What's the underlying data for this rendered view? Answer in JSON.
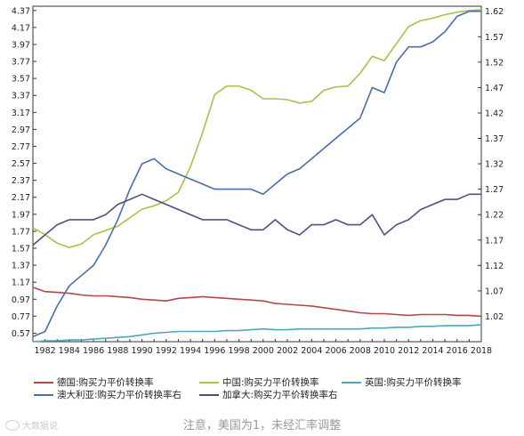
{
  "chart_data": {
    "type": "line",
    "title": "",
    "x": [
      1981,
      1982,
      1983,
      1984,
      1985,
      1986,
      1987,
      1988,
      1989,
      1990,
      1991,
      1992,
      1993,
      1994,
      1995,
      1996,
      1997,
      1998,
      1999,
      2000,
      2001,
      2002,
      2003,
      2004,
      2005,
      2006,
      2007,
      2008,
      2009,
      2010,
      2011,
      2012,
      2013,
      2014,
      2015,
      2016,
      2017,
      2018
    ],
    "x_tick_labels": [
      "1982",
      "1984",
      "1986",
      "1988",
      "1990",
      "1992",
      "1994",
      "1996",
      "1998",
      "2000",
      "2002",
      "2004",
      "2006",
      "2008",
      "2010",
      "2012",
      "2014",
      "2016",
      "2018"
    ],
    "x_range": [
      1981,
      2018
    ],
    "left_axis": {
      "ticks": [
        "4.37",
        "4.17",
        "3.97",
        "3.77",
        "3.57",
        "3.37",
        "3.17",
        "2.97",
        "2.77",
        "2.57",
        "2.37",
        "2.17",
        "1.97",
        "1.77",
        "1.57",
        "1.37",
        "1.17",
        "0.97",
        "0.77",
        "0.57"
      ],
      "range": [
        0.47,
        4.42
      ]
    },
    "right_axis": {
      "ticks": [
        "1.62",
        "1.57",
        "1.52",
        "1.47",
        "1.42",
        "1.37",
        "1.32",
        "1.27",
        "1.22",
        "1.17",
        "1.12",
        "1.07",
        "1.02"
      ],
      "range": [
        0.97,
        1.63
      ]
    },
    "series": [
      {
        "name": "德国:购买力平价转换率",
        "color": "#b7464b",
        "axis": "left",
        "values": [
          1.11,
          1.06,
          1.05,
          1.04,
          1.02,
          1.01,
          1.01,
          1.0,
          0.99,
          0.97,
          0.96,
          0.95,
          0.98,
          0.99,
          1.0,
          0.99,
          0.98,
          0.97,
          0.96,
          0.95,
          0.92,
          0.91,
          0.9,
          0.89,
          0.87,
          0.85,
          0.83,
          0.81,
          0.8,
          0.8,
          0.79,
          0.78,
          0.79,
          0.79,
          0.79,
          0.78,
          0.78,
          0.77
        ]
      },
      {
        "name": "中国:购买力平价转换率",
        "color": "#a9c249",
        "axis": "left",
        "values": [
          1.81,
          1.73,
          1.63,
          1.58,
          1.62,
          1.73,
          1.78,
          1.83,
          1.93,
          2.03,
          2.07,
          2.13,
          2.23,
          2.53,
          2.93,
          3.38,
          3.48,
          3.48,
          3.43,
          3.33,
          3.33,
          3.32,
          3.28,
          3.3,
          3.43,
          3.47,
          3.48,
          3.63,
          3.83,
          3.78,
          3.98,
          4.18,
          4.25,
          4.28,
          4.32,
          4.35,
          4.37,
          4.38
        ]
      },
      {
        "name": "英国:购买力平价转换率",
        "color": "#4aa8b8",
        "axis": "left",
        "values": [
          0.47,
          0.48,
          0.48,
          0.49,
          0.49,
          0.5,
          0.51,
          0.52,
          0.53,
          0.55,
          0.57,
          0.58,
          0.59,
          0.59,
          0.59,
          0.59,
          0.6,
          0.6,
          0.61,
          0.62,
          0.61,
          0.61,
          0.62,
          0.62,
          0.62,
          0.62,
          0.62,
          0.62,
          0.63,
          0.63,
          0.64,
          0.64,
          0.65,
          0.65,
          0.66,
          0.66,
          0.66,
          0.67
        ]
      },
      {
        "name": "澳大利亚:购买力平价转换率右",
        "color": "#4a6fa5",
        "axis": "right",
        "values": [
          0.98,
          0.99,
          1.04,
          1.08,
          1.1,
          1.12,
          1.16,
          1.21,
          1.27,
          1.32,
          1.33,
          1.31,
          1.3,
          1.29,
          1.28,
          1.27,
          1.27,
          1.27,
          1.27,
          1.26,
          1.28,
          1.3,
          1.31,
          1.33,
          1.35,
          1.37,
          1.39,
          1.41,
          1.47,
          1.46,
          1.52,
          1.55,
          1.55,
          1.56,
          1.58,
          1.61,
          1.62,
          1.62
        ]
      },
      {
        "name": "加拿大:购买力平价转换率右",
        "color": "#5a4a80",
        "axis": "right",
        "values": [
          1.16,
          1.18,
          1.2,
          1.21,
          1.21,
          1.21,
          1.22,
          1.24,
          1.25,
          1.26,
          1.25,
          1.24,
          1.23,
          1.22,
          1.21,
          1.21,
          1.21,
          1.2,
          1.19,
          1.19,
          1.21,
          1.19,
          1.18,
          1.2,
          1.2,
          1.21,
          1.2,
          1.2,
          1.22,
          1.18,
          1.2,
          1.21,
          1.23,
          1.24,
          1.25,
          1.25,
          1.26,
          1.26
        ]
      }
    ],
    "grid": false,
    "legend_position": "bottom"
  },
  "caption": "注意，美国为1，未经汇率调整",
  "watermark": "大数据说"
}
